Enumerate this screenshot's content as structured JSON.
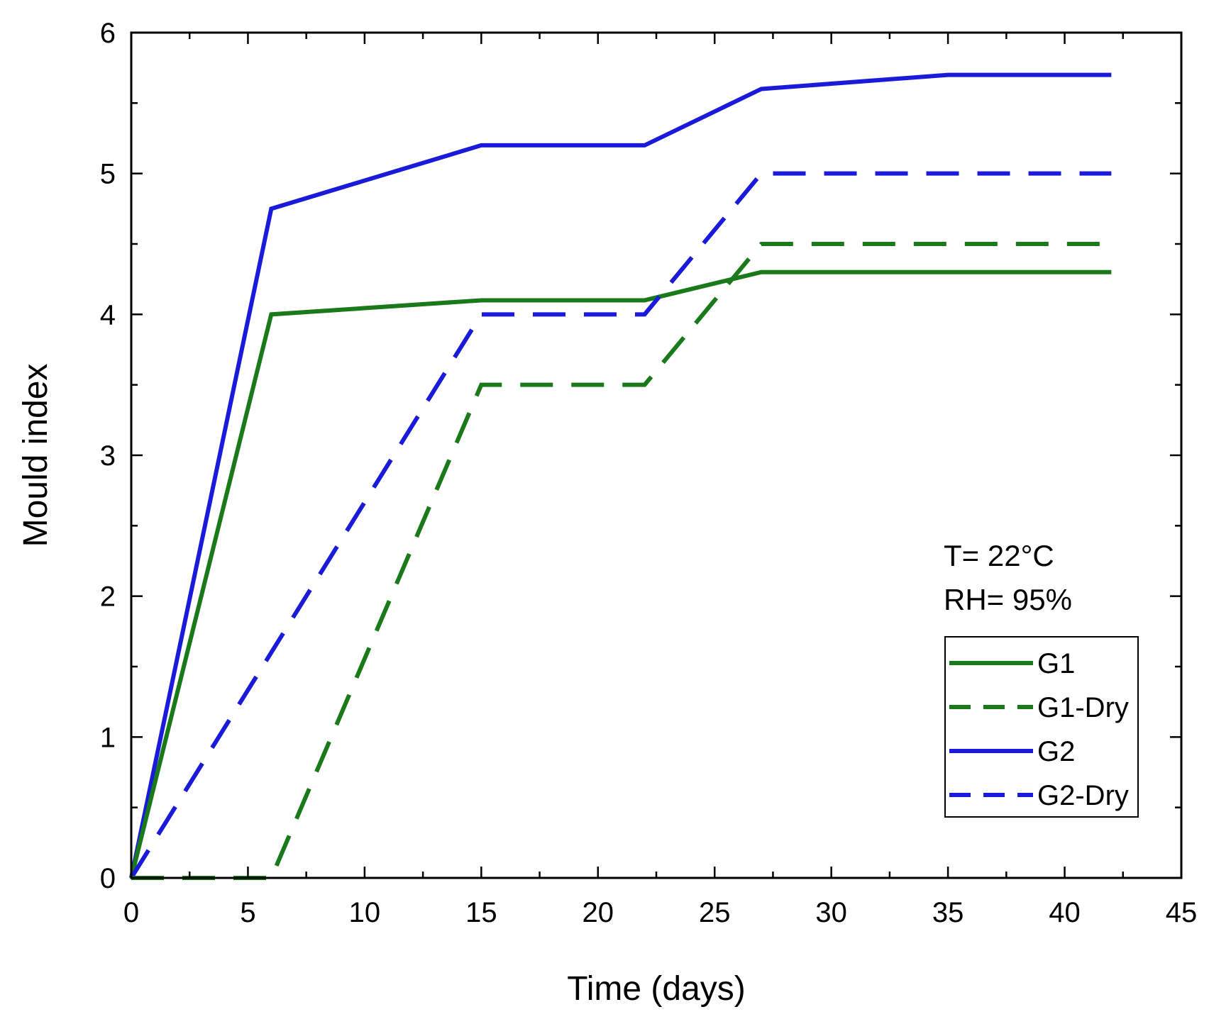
{
  "chart_data": {
    "type": "line",
    "title": "",
    "xlabel": "Time (days)",
    "ylabel": "Mould index",
    "xlim": [
      0,
      45
    ],
    "ylim": [
      0,
      6
    ],
    "xticks": [
      0,
      5,
      10,
      15,
      20,
      25,
      30,
      35,
      40,
      45
    ],
    "yticks": [
      0,
      1,
      2,
      3,
      4,
      5,
      6
    ],
    "grid": false,
    "legend_position": "bottom-right",
    "annotations": [
      "T= 22°C",
      "RH= 95%"
    ],
    "series": [
      {
        "name": "G1",
        "color": "#1a7a1a",
        "dash": "solid",
        "x": [
          0,
          6,
          15,
          22,
          27,
          42
        ],
        "y": [
          0,
          4.0,
          4.1,
          4.1,
          4.3,
          4.3
        ]
      },
      {
        "name": "G1-Dry",
        "color": "#1a7a1a",
        "dash": "dashed",
        "x": [
          0,
          6,
          15,
          22,
          27,
          42
        ],
        "y": [
          0,
          0,
          3.5,
          3.5,
          4.5,
          4.5
        ]
      },
      {
        "name": "G2",
        "color": "#1a1adb",
        "dash": "solid",
        "x": [
          0,
          6,
          15,
          22,
          27,
          35,
          42
        ],
        "y": [
          0,
          4.75,
          5.2,
          5.2,
          5.6,
          5.7,
          5.7
        ]
      },
      {
        "name": "G2-Dry",
        "color": "#1a1adb",
        "dash": "dashed",
        "x": [
          0,
          15,
          22,
          27,
          42
        ],
        "y": [
          0,
          4.0,
          4.0,
          5.0,
          5.0
        ]
      }
    ]
  }
}
